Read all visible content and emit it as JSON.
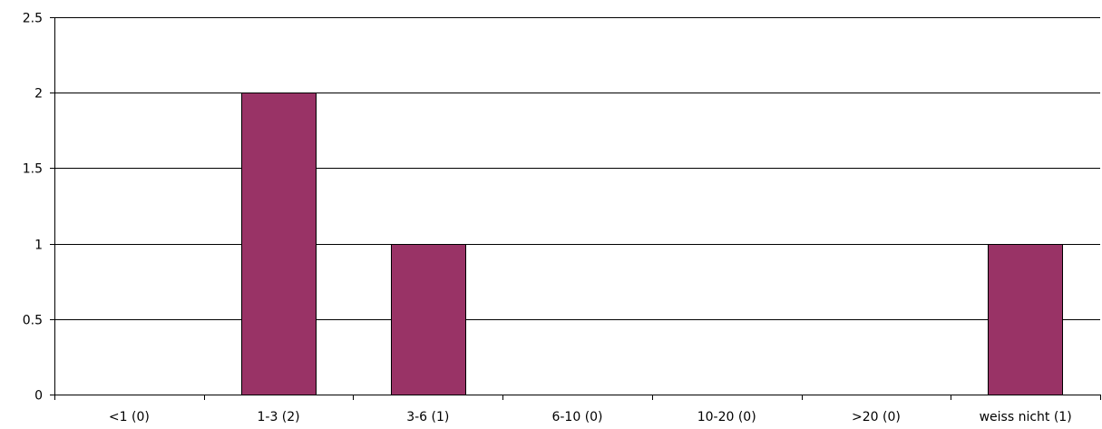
{
  "chart_data": {
    "type": "bar",
    "categories": [
      "<1 (0)",
      "1-3 (2)",
      "3-6 (1)",
      "6-10 (0)",
      "10-20 (0)",
      ">20 (0)",
      "weiss nicht (1)"
    ],
    "values": [
      0,
      2,
      1,
      0,
      0,
      0,
      1
    ],
    "title": "",
    "xlabel": "",
    "ylabel": "",
    "ylim": [
      0,
      2.5
    ],
    "yticks": [
      0,
      0.5,
      1,
      1.5,
      2,
      2.5
    ],
    "ytick_labels": [
      "0",
      "0.5",
      "1",
      "1.5",
      "2",
      "2.5"
    ],
    "grid": true,
    "legend": "none",
    "colors": {
      "bar": "#993366",
      "bar_edge": "#000000",
      "grid": "#000000",
      "axis": "#000000"
    }
  }
}
